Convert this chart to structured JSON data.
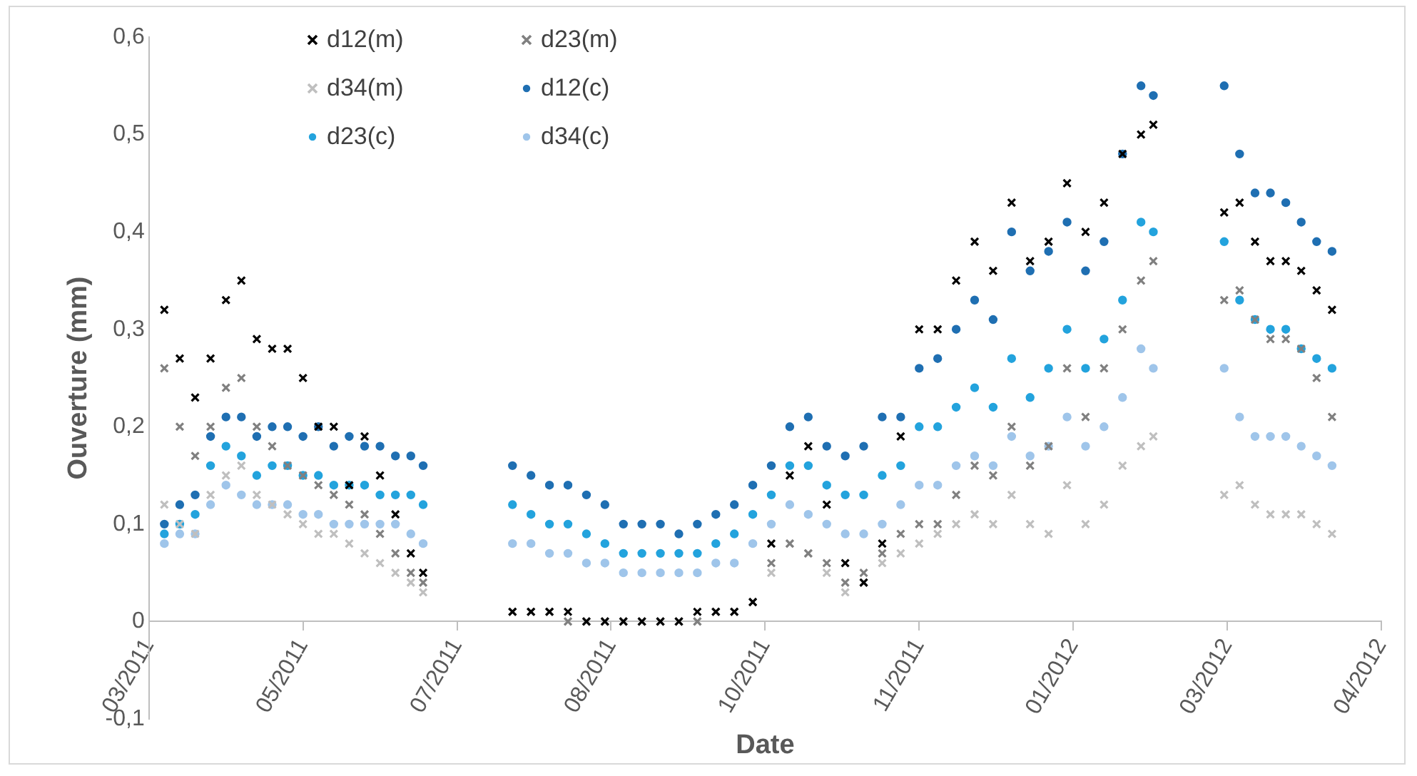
{
  "chart_data": {
    "type": "scatter",
    "xlabel": "Date",
    "ylabel": "Ouverture (mm)",
    "x": [
      "2011-03-29",
      "2011-04-03",
      "2011-04-08",
      "2011-04-13",
      "2011-04-18",
      "2011-04-23",
      "2011-04-28",
      "2011-05-03",
      "2011-05-08",
      "2011-05-13",
      "2011-05-18",
      "2011-05-23",
      "2011-05-28",
      "2011-06-02",
      "2011-06-07",
      "2011-06-12",
      "2011-06-17",
      "2011-06-21",
      "2011-07-20",
      "2011-07-26",
      "2011-08-01",
      "2011-08-07",
      "2011-08-13",
      "2011-08-19",
      "2011-08-25",
      "2011-08-31",
      "2011-09-06",
      "2011-09-12",
      "2011-09-18",
      "2011-09-24",
      "2011-09-30",
      "2011-10-06",
      "2011-10-12",
      "2011-10-18",
      "2011-10-24",
      "2011-10-30",
      "2011-11-05",
      "2011-11-11",
      "2011-11-17",
      "2011-11-23",
      "2011-11-29",
      "2011-12-05",
      "2011-12-11",
      "2011-12-17",
      "2011-12-23",
      "2011-12-29",
      "2012-01-04",
      "2012-01-10",
      "2012-01-16",
      "2012-01-22",
      "2012-01-28",
      "2012-02-03",
      "2012-02-09",
      "2012-02-13",
      "2012-03-07",
      "2012-03-12",
      "2012-03-17",
      "2012-03-22",
      "2012-03-27",
      "2012-04-01",
      "2012-04-06",
      "2012-04-11"
    ],
    "series": [
      {
        "name": "d12(m)",
        "color": "#000000",
        "marker": "cross",
        "values": [
          0.32,
          0.27,
          0.23,
          0.27,
          0.33,
          0.35,
          0.29,
          0.28,
          0.28,
          0.25,
          0.2,
          0.2,
          0.14,
          0.19,
          0.15,
          0.11,
          0.07,
          0.05,
          0.01,
          0.01,
          0.01,
          0.01,
          0,
          0,
          0,
          0,
          0,
          0,
          0.01,
          0.01,
          0.01,
          0.02,
          0.08,
          0.15,
          0.18,
          0.12,
          0.06,
          0.04,
          0.08,
          0.19,
          0.3,
          0.3,
          0.35,
          0.39,
          0.36,
          0.43,
          0.37,
          0.39,
          0.45,
          0.4,
          0.43,
          0.48,
          0.5,
          0.51,
          0.42,
          0.43,
          0.39,
          0.37,
          0.37,
          0.36,
          0.34,
          0.32
        ]
      },
      {
        "name": "d23(m)",
        "color": "#808080",
        "marker": "cross",
        "values": [
          0.26,
          0.2,
          0.17,
          0.2,
          0.24,
          0.25,
          0.2,
          0.18,
          0.16,
          0.15,
          0.14,
          0.13,
          0.12,
          0.11,
          0.09,
          0.07,
          0.05,
          0.04,
          0.01,
          0.01,
          0.01,
          0,
          0,
          0,
          0,
          0,
          0,
          0,
          0,
          0.01,
          0.01,
          0.02,
          0.06,
          0.08,
          0.07,
          0.06,
          0.04,
          0.05,
          0.07,
          0.09,
          0.1,
          0.1,
          0.13,
          0.16,
          0.15,
          0.2,
          0.16,
          0.18,
          0.26,
          0.21,
          0.26,
          0.3,
          0.35,
          0.37,
          0.33,
          0.34,
          0.31,
          0.29,
          0.29,
          0.28,
          0.25,
          0.21
        ]
      },
      {
        "name": "d34(m)",
        "color": "#bfbfbf",
        "marker": "cross",
        "values": [
          0.12,
          0.1,
          0.09,
          0.13,
          0.15,
          0.16,
          0.13,
          0.12,
          0.11,
          0.1,
          0.09,
          0.09,
          0.08,
          0.07,
          0.06,
          0.05,
          0.04,
          0.03,
          0.01,
          0.01,
          0.01,
          0,
          0,
          0,
          0,
          0,
          0,
          0,
          0,
          0.01,
          0.01,
          0.02,
          0.05,
          0.08,
          0.07,
          0.05,
          0.03,
          0.04,
          0.06,
          0.07,
          0.08,
          0.09,
          0.1,
          0.11,
          0.1,
          0.13,
          0.1,
          0.09,
          0.14,
          0.1,
          0.12,
          0.16,
          0.18,
          0.19,
          0.13,
          0.14,
          0.12,
          0.11,
          0.11,
          0.11,
          0.1,
          0.09
        ]
      },
      {
        "name": "d12(c)",
        "color": "#1f6fb2",
        "marker": "circle",
        "values": [
          0.1,
          0.12,
          0.13,
          0.19,
          0.21,
          0.21,
          0.19,
          0.2,
          0.2,
          0.19,
          0.2,
          0.18,
          0.19,
          0.18,
          0.18,
          0.17,
          0.17,
          0.16,
          0.16,
          0.15,
          0.14,
          0.14,
          0.13,
          0.12,
          0.1,
          0.1,
          0.1,
          0.09,
          0.1,
          0.11,
          0.12,
          0.14,
          0.16,
          0.2,
          0.21,
          0.18,
          0.17,
          0.18,
          0.21,
          0.21,
          0.26,
          0.27,
          0.3,
          0.33,
          0.31,
          0.4,
          0.36,
          0.38,
          0.41,
          0.36,
          0.39,
          0.48,
          0.55,
          0.54,
          0.55,
          0.48,
          0.44,
          0.44,
          0.43,
          0.41,
          0.39,
          0.38
        ]
      },
      {
        "name": "d23(c)",
        "color": "#23a3dd",
        "marker": "circle",
        "values": [
          0.09,
          0.1,
          0.11,
          0.16,
          0.18,
          0.17,
          0.15,
          0.16,
          0.16,
          0.15,
          0.15,
          0.14,
          0.14,
          0.14,
          0.13,
          0.13,
          0.13,
          0.12,
          0.12,
          0.11,
          0.1,
          0.1,
          0.09,
          0.08,
          0.07,
          0.07,
          0.07,
          0.07,
          0.07,
          0.08,
          0.09,
          0.11,
          0.13,
          0.16,
          0.16,
          0.14,
          0.13,
          0.13,
          0.15,
          0.16,
          0.2,
          0.2,
          0.22,
          0.24,
          0.22,
          0.27,
          0.23,
          0.26,
          0.3,
          0.26,
          0.29,
          0.33,
          0.41,
          0.4,
          0.39,
          0.33,
          0.31,
          0.3,
          0.3,
          0.28,
          0.27,
          0.26
        ]
      },
      {
        "name": "d34(c)",
        "color": "#9fc5ea",
        "marker": "circle",
        "values": [
          0.08,
          0.09,
          0.09,
          0.12,
          0.14,
          0.13,
          0.12,
          0.12,
          0.12,
          0.11,
          0.11,
          0.1,
          0.1,
          0.1,
          0.1,
          0.1,
          0.09,
          0.08,
          0.08,
          0.08,
          0.07,
          0.07,
          0.06,
          0.06,
          0.05,
          0.05,
          0.05,
          0.05,
          0.05,
          0.06,
          0.06,
          0.08,
          0.1,
          0.12,
          0.11,
          0.1,
          0.09,
          0.09,
          0.1,
          0.12,
          0.14,
          0.14,
          0.16,
          0.17,
          0.16,
          0.19,
          0.17,
          0.18,
          0.21,
          0.18,
          0.2,
          0.23,
          0.28,
          0.26,
          0.26,
          0.21,
          0.19,
          0.19,
          0.19,
          0.18,
          0.17,
          0.16
        ]
      }
    ],
    "xlim": [
      "2011-03-24",
      "2012-04-27"
    ],
    "xticks": [
      {
        "value": "2011-03-24",
        "label": "03/2011"
      },
      {
        "value": "2011-05-13",
        "label": "05/2011"
      },
      {
        "value": "2011-07-02",
        "label": "07/2011"
      },
      {
        "value": "2011-08-21",
        "label": "08/2011"
      },
      {
        "value": "2011-10-10",
        "label": "10/2011"
      },
      {
        "value": "2011-11-29",
        "label": "11/2011"
      },
      {
        "value": "2012-01-18",
        "label": "01/2012"
      },
      {
        "value": "2012-03-08",
        "label": "03/2012"
      },
      {
        "value": "2012-04-27",
        "label": "04/2012"
      }
    ],
    "ylim": [
      -0.1,
      0.6
    ],
    "yticks": [
      {
        "value": -0.1,
        "label": "-0,1"
      },
      0,
      {
        "value": 0.1,
        "label": "0,1"
      },
      {
        "value": 0.2,
        "label": "0,2"
      },
      {
        "value": 0.3,
        "label": "0,3"
      },
      {
        "value": 0.4,
        "label": "0,4"
      },
      {
        "value": 0.5,
        "label": "0,5"
      },
      {
        "value": 0.6,
        "label": "0,6"
      }
    ],
    "grid": false,
    "legend": "top left"
  }
}
